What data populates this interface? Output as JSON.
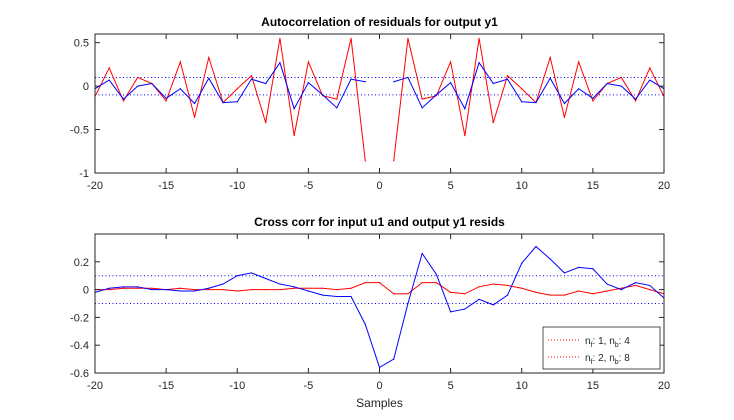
{
  "chart_data": [
    {
      "type": "line",
      "title": "Autocorrelation of residuals for output y1",
      "xlabel": "",
      "ylabel": "",
      "xlim": [
        -20,
        20
      ],
      "ylim": [
        -1,
        0.6
      ],
      "xticks": [
        -20,
        -15,
        -10,
        -5,
        0,
        5,
        10,
        15,
        20
      ],
      "yticks": [
        -1,
        -0.5,
        0,
        0.5
      ],
      "ytick_labels": [
        "-1",
        "-0.5",
        "0",
        "0.5"
      ],
      "confidence_bounds": [
        0.1,
        -0.1
      ],
      "grid": false,
      "legend": "none",
      "series": [
        {
          "color": "#0000ff",
          "x": [
            -20,
            -19,
            -18,
            -17,
            -16,
            -15,
            -14,
            -13,
            -12,
            -11,
            -10,
            -9,
            -8,
            -7,
            -6,
            -5,
            -4,
            -3,
            -2,
            -1,
            1,
            2,
            3,
            4,
            5,
            6,
            7,
            8,
            9,
            10,
            11,
            12,
            13,
            14,
            15,
            16,
            17,
            18,
            19,
            20
          ],
          "y": [
            -0.03,
            0.07,
            -0.15,
            0.0,
            0.03,
            -0.14,
            -0.03,
            -0.2,
            0.09,
            -0.19,
            -0.18,
            0.08,
            0.03,
            0.27,
            -0.26,
            0.04,
            -0.1,
            -0.25,
            0.08,
            0.05,
            0.05,
            0.1,
            -0.25,
            -0.1,
            0.04,
            -0.26,
            0.27,
            0.03,
            0.08,
            -0.18,
            -0.19,
            0.09,
            -0.2,
            -0.03,
            -0.14,
            0.03,
            0.0,
            -0.15,
            0.07,
            -0.03
          ]
        },
        {
          "color": "#ff0000",
          "x": [
            -20,
            -19,
            -18,
            -17,
            -16,
            -15,
            -14,
            -13,
            -12,
            -11,
            -10,
            -9,
            -8,
            -7,
            -6,
            -5,
            -4,
            -3,
            -2,
            -1,
            1,
            2,
            3,
            4,
            5,
            6,
            7,
            8,
            9,
            10,
            11,
            12,
            13,
            14,
            15,
            16,
            17,
            18,
            19,
            20
          ],
          "y": [
            -0.12,
            0.21,
            -0.17,
            0.1,
            0.03,
            -0.17,
            0.28,
            -0.36,
            0.33,
            -0.19,
            -0.03,
            0.12,
            -0.42,
            0.55,
            -0.57,
            0.28,
            -0.11,
            -0.15,
            0.55,
            -0.86,
            -0.86,
            0.55,
            -0.15,
            -0.11,
            0.28,
            -0.57,
            0.55,
            -0.42,
            0.12,
            -0.03,
            -0.19,
            0.33,
            -0.36,
            0.28,
            -0.17,
            0.03,
            0.1,
            -0.17,
            0.21,
            -0.12
          ]
        }
      ]
    },
    {
      "type": "line",
      "title": "Cross corr for input u1 and output y1 resids",
      "xlabel": "Samples",
      "ylabel": "",
      "xlim": [
        -20,
        20
      ],
      "ylim": [
        -0.6,
        0.4
      ],
      "xticks": [
        -20,
        -15,
        -10,
        -5,
        0,
        5,
        10,
        15,
        20
      ],
      "yticks": [
        -0.6,
        -0.4,
        -0.2,
        0,
        0.2
      ],
      "ytick_labels": [
        "-0.6",
        "-0.4",
        "-0.2",
        "0",
        "0.2"
      ],
      "confidence_bounds": [
        0.1,
        -0.1
      ],
      "grid": false,
      "legend": "bottom-right",
      "series": [
        {
          "legend_parts": [
            "n",
            "f",
            ": 1, n",
            "b",
            ": 4"
          ],
          "color": "#0000ff",
          "x": [
            -20,
            -19,
            -18,
            -17,
            -16,
            -15,
            -14,
            -13,
            -12,
            -11,
            -10,
            -9,
            -8,
            -7,
            -6,
            -5,
            -4,
            -3,
            -2,
            -1,
            0,
            1,
            2,
            3,
            4,
            5,
            6,
            7,
            8,
            9,
            10,
            11,
            12,
            13,
            14,
            15,
            16,
            17,
            18,
            19,
            20
          ],
          "y": [
            -0.02,
            0.01,
            0.02,
            0.02,
            0.0,
            0.0,
            -0.01,
            -0.01,
            0.01,
            0.04,
            0.1,
            0.12,
            0.08,
            0.04,
            0.02,
            -0.01,
            -0.04,
            -0.05,
            -0.05,
            -0.25,
            -0.56,
            -0.5,
            -0.1,
            0.26,
            0.11,
            -0.16,
            -0.14,
            -0.07,
            -0.11,
            -0.04,
            0.19,
            0.31,
            0.22,
            0.12,
            0.16,
            0.15,
            0.04,
            0.0,
            0.05,
            0.03,
            -0.06
          ]
        },
        {
          "legend_parts": [
            "n",
            "f",
            ": 2, n",
            "b",
            ": 8"
          ],
          "color": "#ff0000",
          "x": [
            -20,
            -19,
            -18,
            -17,
            -16,
            -15,
            -14,
            -13,
            -12,
            -11,
            -10,
            -9,
            -8,
            -7,
            -6,
            -5,
            -4,
            -3,
            -2,
            -1,
            0,
            1,
            2,
            3,
            4,
            5,
            6,
            7,
            8,
            9,
            10,
            11,
            12,
            13,
            14,
            15,
            16,
            17,
            18,
            19,
            20
          ],
          "y": [
            0.0,
            0.0,
            0.01,
            0.01,
            0.01,
            0.0,
            0.01,
            0.0,
            0.0,
            0.0,
            -0.01,
            0.0,
            0.0,
            0.0,
            0.01,
            0.01,
            0.01,
            0.0,
            0.01,
            0.05,
            0.05,
            -0.03,
            -0.03,
            0.05,
            0.05,
            -0.02,
            -0.03,
            0.02,
            0.04,
            0.03,
            0.01,
            -0.02,
            -0.04,
            -0.04,
            -0.01,
            -0.03,
            -0.01,
            0.01,
            0.03,
            0.0,
            -0.03
          ]
        }
      ]
    }
  ]
}
